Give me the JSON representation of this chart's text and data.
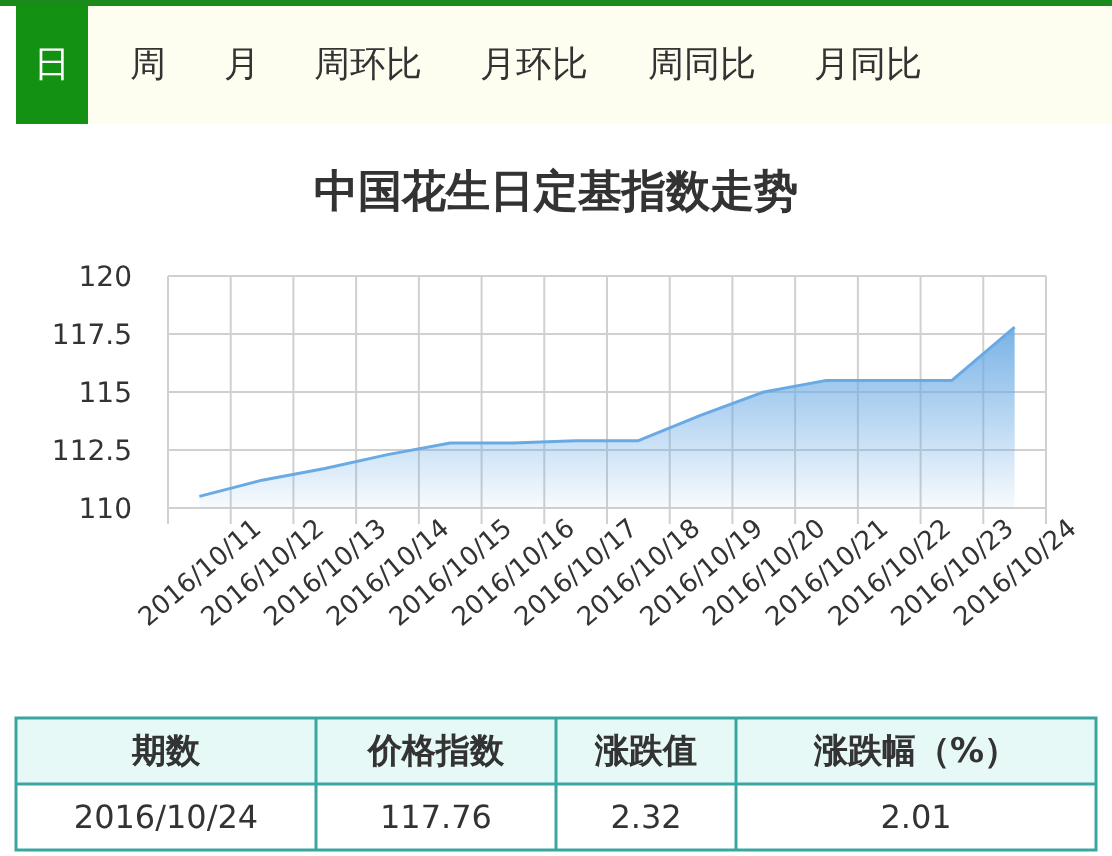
{
  "chart_data": [
    {
      "type": "other",
      "annotations": [
        "日",
        "周",
        "月",
        "周环比",
        "月环比",
        "周同比",
        "月同比"
      ]
    },
    {
      "type": "area",
      "title": "中国花生日定基指数走势",
      "categories": [
        "2016/10/11",
        "2016/10/12",
        "2016/10/13",
        "2016/10/14",
        "2016/10/15",
        "2016/10/16",
        "2016/10/17",
        "2016/10/18",
        "2016/10/19",
        "2016/10/20",
        "2016/10/21",
        "2016/10/22",
        "2016/10/23",
        "2016/10/24"
      ],
      "series": [
        {
          "color": "#6aaae4",
          "values": [
            110.5,
            111.2,
            111.7,
            112.3,
            112.8,
            112.8,
            112.9,
            112.9,
            114.0,
            115.0,
            115.5,
            115.5,
            115.5,
            117.8
          ]
        }
      ],
      "ylim": [
        110,
        120
      ],
      "yticks": [
        110,
        112.5,
        115,
        117.5,
        120
      ],
      "grid": true
    },
    {
      "type": "other",
      "annotations": [
        "期数",
        "价格指数",
        "涨跌值",
        "涨跌幅（%）",
        "2016/10/24",
        "117.76",
        "2.32",
        "2.01"
      ]
    }
  ]
}
